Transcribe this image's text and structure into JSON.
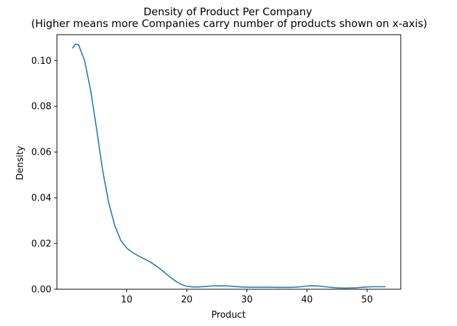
{
  "chart_data": {
    "type": "line",
    "title": "Density of Product Per Company",
    "subtitle": "(Higher means more Companies carry number of products shown on x-axis)",
    "xlabel": "Product",
    "ylabel": "Density",
    "xlim": [
      -1.6,
      55.6
    ],
    "ylim": [
      0,
      0.1113
    ],
    "xticks": [
      10,
      20,
      30,
      40,
      50
    ],
    "yticks": [
      0.0,
      0.02,
      0.04,
      0.06,
      0.08,
      0.1
    ],
    "ytick_labels": [
      "0.00",
      "0.02",
      "0.04",
      "0.06",
      "0.08",
      "0.10"
    ],
    "grid": false,
    "line_color": "#1f77b4",
    "series": [
      {
        "x": [
          1,
          1.5,
          2,
          3,
          4,
          5,
          6,
          7,
          8,
          9,
          10,
          11,
          12,
          13,
          14,
          15,
          16,
          17,
          18,
          19,
          20,
          21,
          22,
          23,
          24,
          25,
          26,
          27,
          28,
          29,
          30,
          31,
          32,
          33,
          34,
          35,
          36,
          37,
          38,
          39,
          40,
          41,
          42,
          43,
          44,
          45,
          46,
          47,
          48,
          49,
          50,
          51,
          52,
          53
        ],
        "y": [
          0.1055,
          0.1072,
          0.1068,
          0.1,
          0.087,
          0.07,
          0.052,
          0.038,
          0.028,
          0.0215,
          0.018,
          0.016,
          0.0145,
          0.0132,
          0.0118,
          0.01,
          0.008,
          0.0058,
          0.0038,
          0.0022,
          0.0013,
          0.001,
          0.001,
          0.0012,
          0.0014,
          0.0015,
          0.0015,
          0.0014,
          0.0012,
          0.001,
          0.0009,
          0.0009,
          0.0009,
          0.0009,
          0.0009,
          0.0008,
          0.0008,
          0.0008,
          0.0009,
          0.0011,
          0.0014,
          0.0015,
          0.0014,
          0.0011,
          0.0008,
          0.0006,
          0.0005,
          0.0005,
          0.0006,
          0.0008,
          0.001,
          0.0011,
          0.0011,
          0.0011
        ]
      }
    ]
  }
}
